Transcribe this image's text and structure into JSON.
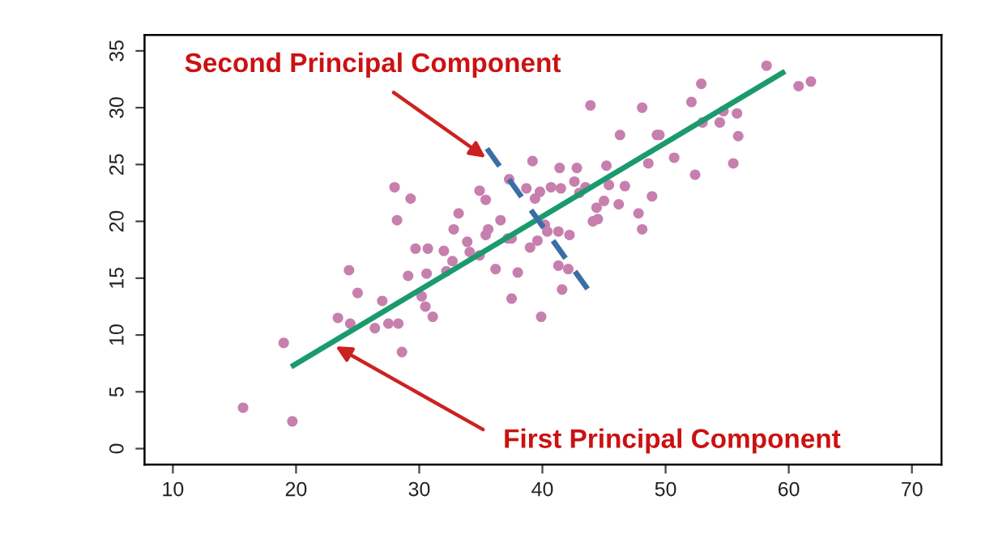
{
  "chart_data": {
    "type": "scatter",
    "xlim": [
      7.7,
      72.4
    ],
    "ylim": [
      -1.4,
      36.4
    ],
    "xticks": [
      10,
      20,
      30,
      40,
      50,
      60,
      70
    ],
    "yticks": [
      0,
      5,
      10,
      15,
      20,
      25,
      30,
      35
    ],
    "grid": false,
    "legend": false,
    "series": [
      {
        "marker": "circle",
        "color": "#c77fae",
        "x": [
          15.7,
          19.7,
          19.0,
          23.4,
          24.4,
          24.3,
          25.0,
          26.4,
          27.0,
          27.5,
          28.3,
          28.6,
          28.0,
          28.2,
          29.3,
          29.1,
          29.7,
          30.2,
          30.5,
          30.6,
          30.7,
          31.1,
          32.0,
          32.2,
          32.7,
          32.8,
          33.2,
          33.9,
          34.1,
          34.9,
          34.9,
          35.4,
          35.4,
          35.6,
          36.2,
          36.6,
          37.2,
          37.5,
          37.3,
          37.5,
          38.0,
          38.7,
          39.0,
          39.2,
          39.4,
          39.6,
          39.8,
          39.9,
          40.2,
          40.4,
          40.7,
          41.4,
          41.3,
          41.3,
          41.5,
          41.6,
          42.1,
          42.2,
          42.6,
          42.8,
          43.0,
          43.5,
          43.9,
          44.1,
          44.5,
          44.4,
          45.0,
          45.2,
          45.4,
          46.2,
          46.3,
          46.7,
          47.8,
          48.1,
          48.1,
          48.6,
          48.9,
          49.3,
          49.5,
          50.7,
          52.1,
          52.4,
          52.9,
          53.0,
          54.4,
          54.7,
          55.5,
          55.8,
          55.9,
          58.2,
          60.8,
          61.8
        ],
        "values": [
          3.6,
          2.4,
          9.3,
          11.5,
          11.0,
          15.7,
          13.7,
          10.6,
          13.0,
          11.0,
          11.0,
          8.5,
          23.0,
          20.1,
          22.0,
          15.2,
          17.6,
          13.4,
          12.5,
          15.4,
          17.6,
          11.6,
          17.4,
          15.6,
          16.5,
          19.3,
          20.7,
          18.2,
          17.3,
          22.7,
          17.0,
          21.9,
          18.8,
          19.3,
          15.8,
          20.1,
          18.5,
          18.5,
          23.7,
          13.2,
          15.5,
          22.9,
          17.7,
          25.3,
          22.0,
          18.3,
          22.6,
          11.6,
          19.7,
          19.1,
          23.0,
          24.7,
          16.1,
          19.1,
          22.9,
          14.0,
          15.8,
          18.8,
          23.5,
          24.7,
          22.5,
          23.0,
          30.2,
          20.0,
          20.2,
          21.2,
          21.8,
          24.9,
          23.2,
          21.5,
          27.6,
          23.1,
          20.7,
          19.3,
          30.0,
          25.1,
          22.2,
          27.6,
          27.6,
          25.6,
          30.5,
          24.1,
          32.1,
          28.7,
          28.7,
          29.7,
          25.1,
          29.5,
          27.5,
          33.7,
          31.9,
          32.3
        ]
      },
      {
        "type": "line",
        "color": "#1b9a6e",
        "line_style": "solid",
        "marker": "none",
        "x": [
          19.6,
          59.7
        ],
        "values": [
          7.2,
          33.2
        ]
      },
      {
        "type": "line",
        "color": "#3a6ea5",
        "line_style": "dashed",
        "marker": "none",
        "x": [
          35.5,
          43.7
        ],
        "values": [
          26.4,
          14.0
        ]
      }
    ],
    "annotations": [
      {
        "text": "Second Principal Component",
        "x": 35.4,
        "y": 25.6
      },
      {
        "text": "First Principal Component",
        "x": 23.2,
        "y": 9.0
      }
    ]
  }
}
